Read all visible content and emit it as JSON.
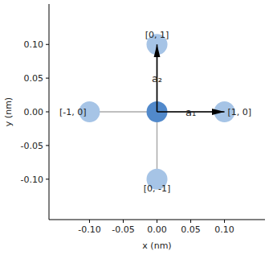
{
  "chart_data": {
    "type": "scatter",
    "x_label": "x (nm)",
    "y_label": "y (nm)",
    "x": [
      0,
      0.1,
      -0.1,
      0,
      0
    ],
    "values": [
      0,
      0,
      0,
      0.1,
      -0.1
    ],
    "colors": [
      "#5189cb",
      "#a6c4e6",
      "#a6c4e6",
      "#a6c4e6",
      "#a6c4e6"
    ],
    "hoppings": [
      [
        0,
        1
      ],
      [
        0,
        2
      ],
      [
        0,
        3
      ],
      [
        0,
        4
      ]
    ],
    "annotations": [
      {
        "text": "[1, 0]",
        "x": 0.1,
        "y": 0
      },
      {
        "text": "[-1, 0]",
        "x": -0.1,
        "y": 0
      },
      {
        "text": "[0, 1]",
        "x": 0,
        "y": 0.1
      },
      {
        "text": "[0, -1]",
        "x": 0,
        "y": -0.1
      }
    ],
    "vectors": [
      {
        "label": "a₁",
        "x": 0.1,
        "y": 0
      },
      {
        "label": "a₂",
        "x": 0,
        "y": 0.1
      }
    ],
    "xlim": [
      -0.16,
      0.16
    ],
    "ylim": [
      -0.16,
      0.16
    ],
    "xticks": [
      {
        "value": -0.1,
        "label": "-0.10"
      },
      {
        "value": -0.05,
        "label": "-0.05"
      },
      {
        "value": 0,
        "label": "0.00"
      },
      {
        "value": 0.05,
        "label": "0.05"
      },
      {
        "value": 0.1,
        "label": "0.10"
      }
    ],
    "yticks": [
      {
        "value": -0.1,
        "label": "-0.10"
      },
      {
        "value": -0.05,
        "label": "-0.05"
      },
      {
        "value": 0,
        "label": "0.00"
      },
      {
        "value": 0.05,
        "label": "0.05"
      },
      {
        "value": 0.1,
        "label": "0.10"
      }
    ],
    "grid": false
  }
}
